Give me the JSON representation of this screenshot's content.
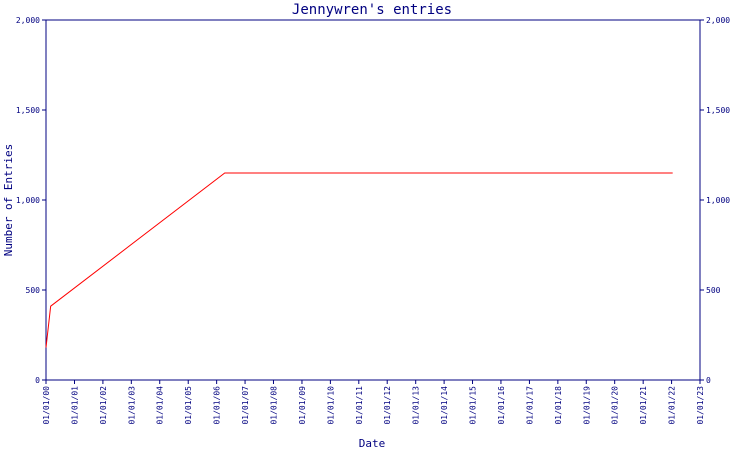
{
  "chart_data": {
    "type": "line",
    "title": "Jennywren's entries",
    "xlabel": "Date",
    "ylabel": "Number of Entries",
    "ylim": [
      0,
      2000
    ],
    "y_ticks": [
      "0",
      "500",
      "1,000",
      "1,500",
      "2,000"
    ],
    "y_tick_values": [
      0,
      500,
      1000,
      1500,
      2000
    ],
    "x_ticks": [
      "01/01/00",
      "01/01/01",
      "01/01/02",
      "01/01/03",
      "01/01/04",
      "01/01/05",
      "01/01/06",
      "01/01/07",
      "01/01/08",
      "01/01/09",
      "01/01/10",
      "01/01/11",
      "01/01/12",
      "01/01/13",
      "01/01/14",
      "01/01/15",
      "01/01/16",
      "01/01/17",
      "01/01/18",
      "01/01/19",
      "01/01/20",
      "01/01/21",
      "01/01/22",
      "01/01/23"
    ],
    "x_range": [
      "2000-01-01",
      "2023-01-01"
    ],
    "grid": false,
    "series": [
      {
        "color": "#ff0000",
        "points": [
          {
            "x": "2000-01-01",
            "y": 180
          },
          {
            "x": "2000-03-01",
            "y": 410
          },
          {
            "x": "2006-04-15",
            "y": 1150
          },
          {
            "x": "2022-01-15",
            "y": 1150
          }
        ]
      }
    ],
    "colors": {
      "axis": "#000080",
      "text": "#000080",
      "series": "#ff0000",
      "background": "#ffffff"
    }
  }
}
